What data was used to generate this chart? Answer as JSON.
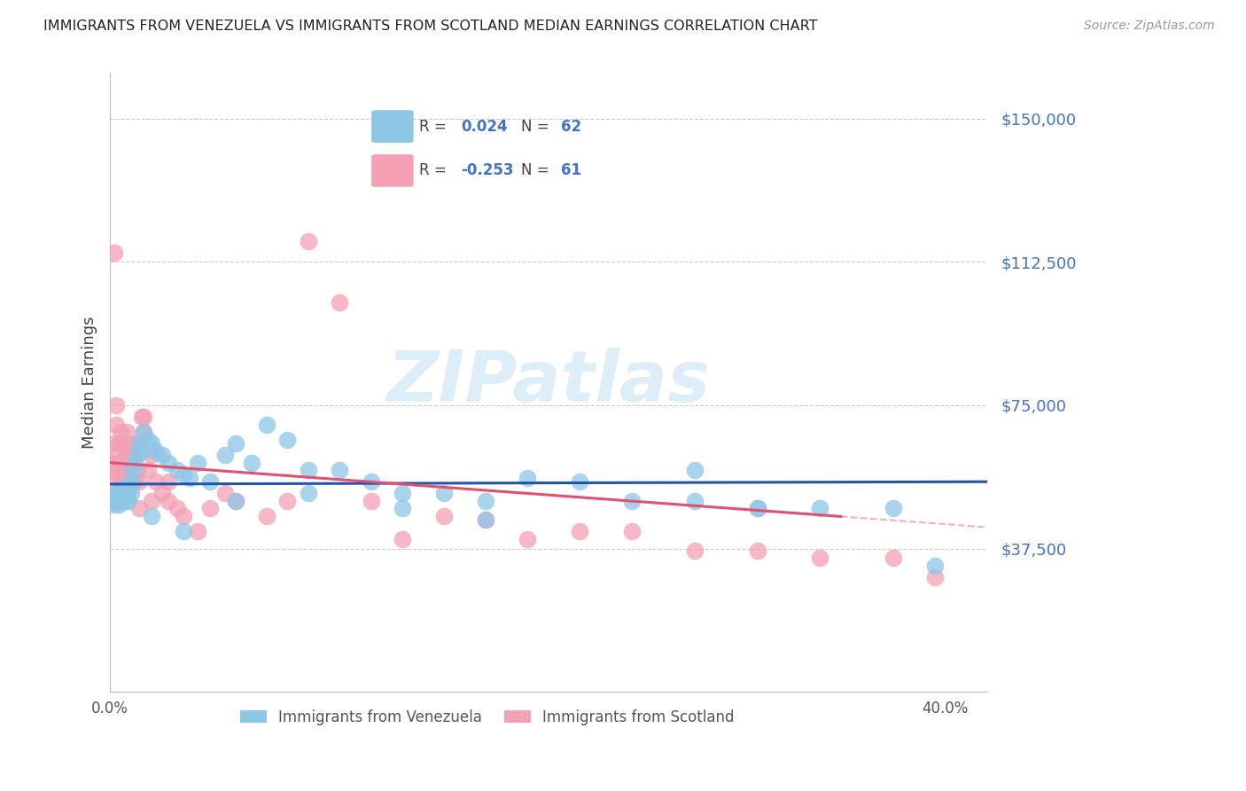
{
  "title": "IMMIGRANTS FROM VENEZUELA VS IMMIGRANTS FROM SCOTLAND MEDIAN EARNINGS CORRELATION CHART",
  "source": "Source: ZipAtlas.com",
  "ylabel": "Median Earnings",
  "ytick_labels": [
    "$37,500",
    "$75,000",
    "$112,500",
    "$150,000"
  ],
  "ytick_values": [
    37500,
    75000,
    112500,
    150000
  ],
  "ylim": [
    0,
    162000
  ],
  "xlim": [
    0,
    0.42
  ],
  "watermark": "ZIPatlas",
  "color_venezuela": "#8ec6e6",
  "color_scotland": "#f4a0b5",
  "color_trend_venezuela": "#2255aa",
  "color_trend_scotland": "#e05070",
  "color_ytick": "#4472c4",
  "color_grid": "#cccccc",
  "venezuela_x": [
    0.001,
    0.002,
    0.002,
    0.003,
    0.003,
    0.004,
    0.004,
    0.005,
    0.005,
    0.006,
    0.006,
    0.007,
    0.007,
    0.008,
    0.008,
    0.009,
    0.009,
    0.01,
    0.01,
    0.011,
    0.012,
    0.013,
    0.014,
    0.015,
    0.016,
    0.018,
    0.02,
    0.022,
    0.025,
    0.028,
    0.032,
    0.035,
    0.038,
    0.042,
    0.048,
    0.055,
    0.06,
    0.068,
    0.075,
    0.085,
    0.095,
    0.11,
    0.125,
    0.14,
    0.16,
    0.18,
    0.2,
    0.225,
    0.25,
    0.28,
    0.31,
    0.34,
    0.375,
    0.395,
    0.28,
    0.31,
    0.18,
    0.095,
    0.14,
    0.06,
    0.035,
    0.02
  ],
  "venezuela_y": [
    50000,
    51000,
    49000,
    52000,
    50000,
    51000,
    49000,
    52000,
    50000,
    53000,
    51000,
    50000,
    52000,
    54000,
    51000,
    53000,
    50000,
    52000,
    55000,
    58000,
    60000,
    62000,
    65000,
    63000,
    68000,
    66000,
    65000,
    63000,
    62000,
    60000,
    58000,
    57000,
    56000,
    60000,
    55000,
    62000,
    65000,
    60000,
    70000,
    66000,
    58000,
    58000,
    55000,
    52000,
    52000,
    50000,
    56000,
    55000,
    50000,
    50000,
    48000,
    48000,
    48000,
    33000,
    58000,
    48000,
    45000,
    52000,
    48000,
    50000,
    42000,
    46000
  ],
  "scotland_x": [
    0.001,
    0.001,
    0.002,
    0.002,
    0.003,
    0.003,
    0.004,
    0.004,
    0.005,
    0.005,
    0.006,
    0.006,
    0.007,
    0.007,
    0.008,
    0.008,
    0.009,
    0.009,
    0.01,
    0.011,
    0.012,
    0.013,
    0.014,
    0.015,
    0.016,
    0.018,
    0.02,
    0.022,
    0.025,
    0.028,
    0.032,
    0.035,
    0.042,
    0.048,
    0.055,
    0.06,
    0.075,
    0.085,
    0.095,
    0.11,
    0.125,
    0.14,
    0.16,
    0.18,
    0.2,
    0.225,
    0.25,
    0.28,
    0.31,
    0.34,
    0.375,
    0.395,
    0.028,
    0.012,
    0.016,
    0.008,
    0.005,
    0.003,
    0.002,
    0.014,
    0.02
  ],
  "scotland_y": [
    55000,
    60000,
    58000,
    65000,
    62000,
    70000,
    65000,
    58000,
    68000,
    60000,
    65000,
    55000,
    60000,
    58000,
    68000,
    62000,
    65000,
    58000,
    60000,
    62000,
    55000,
    58000,
    55000,
    72000,
    68000,
    58000,
    62000,
    55000,
    52000,
    50000,
    48000,
    46000,
    42000,
    48000,
    52000,
    50000,
    46000,
    50000,
    118000,
    102000,
    50000,
    40000,
    46000,
    45000,
    40000,
    42000,
    42000,
    37000,
    37000,
    35000,
    35000,
    30000,
    55000,
    65000,
    72000,
    62000,
    55000,
    75000,
    115000,
    48000,
    50000
  ]
}
